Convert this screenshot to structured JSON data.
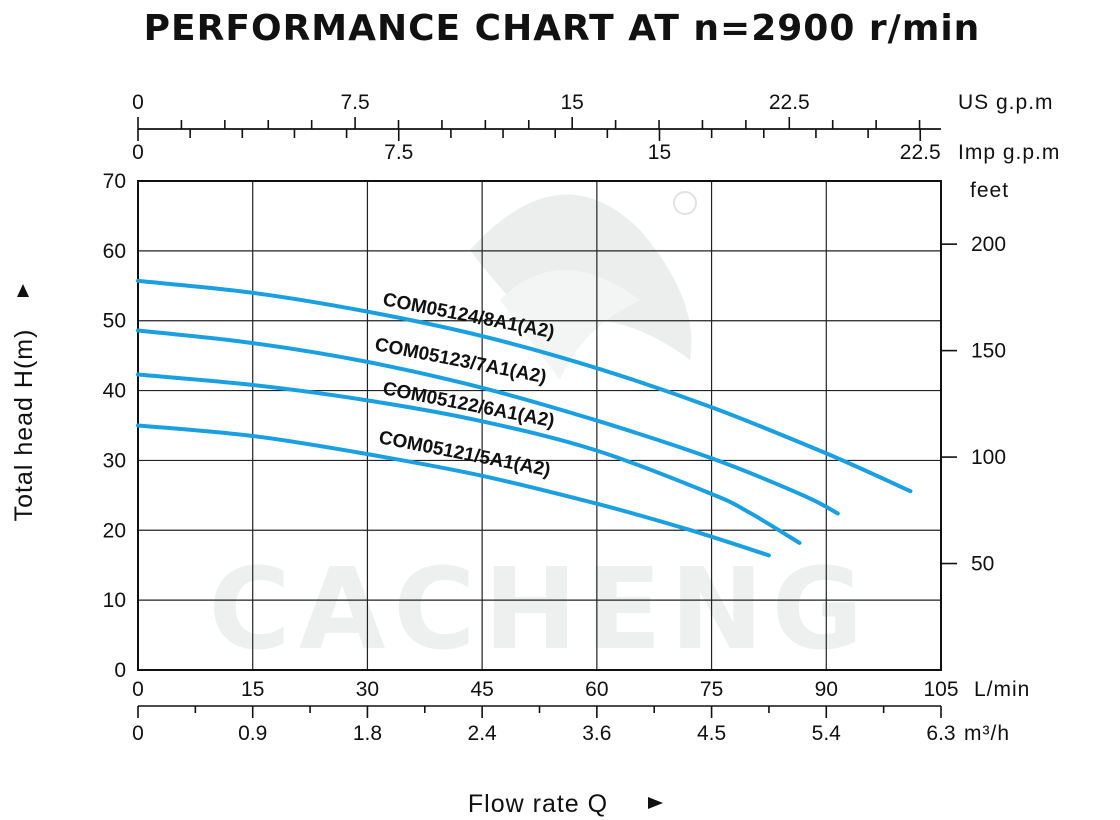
{
  "chart_data": {
    "type": "line",
    "title": "PERFORMANCE CHART AT n=2900 r/min",
    "xlabel": "Flow rate Q",
    "ylabel": "Total head H(m)",
    "xlim": [
      0,
      105
    ],
    "ylim": [
      0,
      70
    ],
    "grid": true,
    "x_ticks": [
      0,
      15,
      30,
      45,
      60,
      75,
      90,
      105
    ],
    "x_ticks_labels": [
      "0",
      "15",
      "30",
      "45",
      "60",
      "75",
      "90",
      "105"
    ],
    "x_unit": "L/min",
    "y_ticks": [
      0,
      10,
      20,
      30,
      40,
      50,
      60,
      70
    ],
    "y_ticks_labels": [
      "0",
      "10",
      "20",
      "30",
      "40",
      "50",
      "60",
      "70"
    ],
    "secondary_axes": {
      "m3h": {
        "unit": "m³/h",
        "ticks": [
          0,
          0.9,
          1.8,
          2.4,
          3.6,
          4.5,
          5.4,
          6.3
        ],
        "labels": [
          "0",
          "0.9",
          "1.8",
          "2.4",
          "3.6",
          "4.5",
          "5.4",
          "6.3"
        ],
        "minor_steps": 7
      },
      "us_gpm": {
        "unit": "US g.p.m",
        "ticks": [
          0,
          7.5,
          15,
          22.5
        ],
        "labels": [
          "0",
          "7.5",
          "15",
          "22.5"
        ],
        "minor_step": 1.5
      },
      "imp_gpm": {
        "unit": "Imp g.p.m",
        "ticks": [
          0,
          7.5,
          15,
          22.5
        ],
        "labels": [
          "0",
          "7.5",
          "15",
          "22.5"
        ],
        "minor_step": 1.5
      },
      "feet": {
        "unit": "feet",
        "ticks": [
          50,
          100,
          150,
          200
        ],
        "labels": [
          "50",
          "100",
          "150",
          "200"
        ]
      }
    },
    "series": [
      {
        "name": "COM05124/8A1(A2)",
        "x": [
          0,
          15,
          30,
          45,
          60,
          75,
          90,
          101
        ],
        "y": [
          55.7,
          54.0,
          51.3,
          47.8,
          43.2,
          37.6,
          31.0,
          25.6
        ]
      },
      {
        "name": "COM05123/7A1(A2)",
        "x": [
          0,
          15,
          30,
          45,
          60,
          75,
          87,
          91.5
        ],
        "y": [
          48.6,
          46.8,
          44.1,
          40.4,
          35.7,
          30.3,
          25.0,
          22.4
        ]
      },
      {
        "name": "COM05122/6A1(A2)",
        "x": [
          0,
          15,
          30,
          45,
          60,
          75,
          80,
          86.5
        ],
        "y": [
          42.3,
          40.8,
          38.6,
          35.6,
          31.4,
          25.2,
          22.5,
          18.2
        ]
      },
      {
        "name": "COM05121/5A1(A2)",
        "x": [
          0,
          15,
          30,
          45,
          60,
          72,
          82.5
        ],
        "y": [
          35.0,
          33.5,
          30.9,
          27.8,
          23.8,
          20.1,
          16.4
        ]
      }
    ],
    "series_color": "#1aa0e0"
  },
  "watermark": {
    "text": "CACHENG"
  }
}
